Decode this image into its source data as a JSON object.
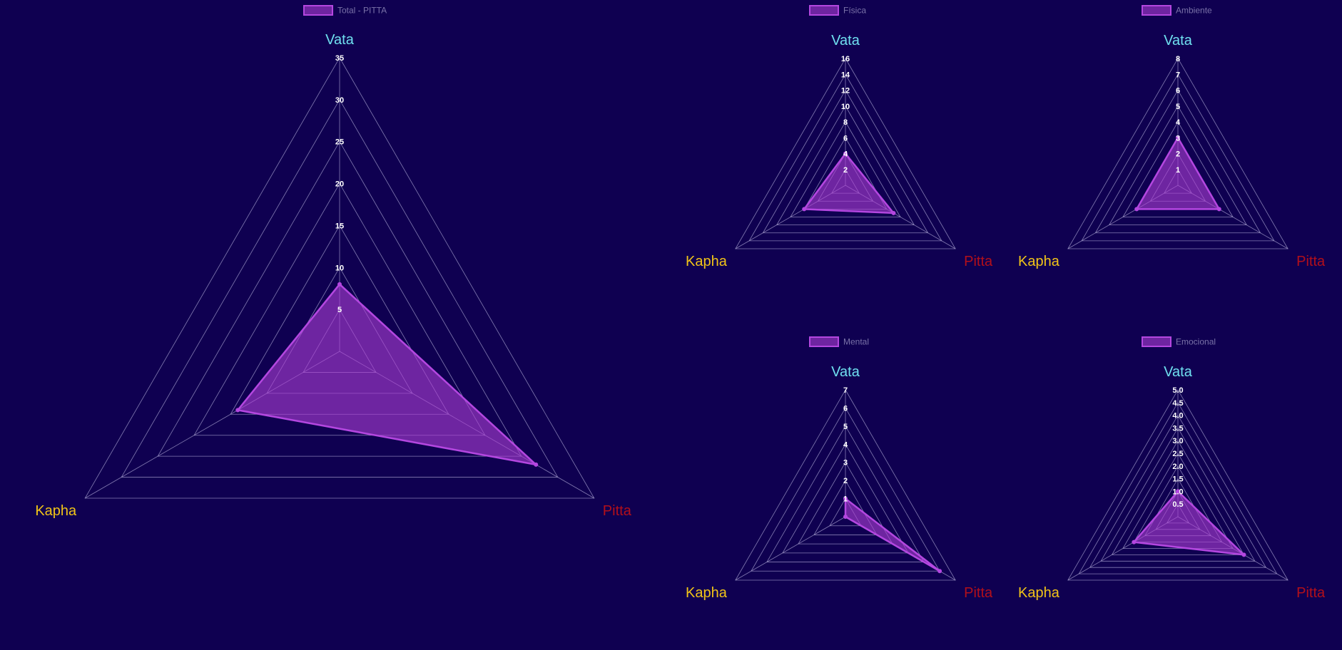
{
  "colors": {
    "background": "#0f0051",
    "grid": "#9a93c4",
    "fill": "rgba(170,60,210,0.62)",
    "stroke": "#b447e0",
    "legend_text": "#7a72a8",
    "tick_text": "#ffffff",
    "vata": "#6fe0f0",
    "kapha": "#f2c418",
    "pitta": "#b20f1a"
  },
  "chart_data": [
    {
      "type": "radar",
      "legend": "Total - PITTA",
      "axes": [
        "Vata",
        "Pitta",
        "Kapha"
      ],
      "values": [
        8,
        27,
        14
      ],
      "r_range": [
        0,
        35
      ],
      "ticks": [
        "5",
        "10",
        "15",
        "20",
        "25",
        "30",
        "35"
      ],
      "grid": true,
      "legend_position": "top"
    },
    {
      "type": "radar",
      "legend": "Física",
      "axes": [
        "Vata",
        "Pitta",
        "Kapha"
      ],
      "values": [
        4,
        7,
        6
      ],
      "r_range": [
        0,
        16
      ],
      "ticks": [
        "2",
        "4",
        "6",
        "8",
        "10",
        "12",
        "14",
        "16"
      ],
      "grid": true,
      "legend_position": "top"
    },
    {
      "type": "radar",
      "legend": "Ambiente",
      "axes": [
        "Vata",
        "Pitta",
        "Kapha"
      ],
      "values": [
        3,
        3,
        3
      ],
      "r_range": [
        0,
        8
      ],
      "ticks": [
        "1",
        "2",
        "3",
        "4",
        "5",
        "6",
        "7",
        "8"
      ],
      "grid": true,
      "legend_position": "top"
    },
    {
      "type": "radar",
      "legend": "Mental",
      "axes": [
        "Vata",
        "Pitta",
        "Kapha"
      ],
      "values": [
        1,
        6,
        0
      ],
      "r_range": [
        0,
        7
      ],
      "ticks": [
        "1",
        "2",
        "3",
        "4",
        "5",
        "6",
        "7"
      ],
      "grid": true,
      "legend_position": "top"
    },
    {
      "type": "radar",
      "legend": "Emocional",
      "axes": [
        "Vata",
        "Pitta",
        "Kapha"
      ],
      "values": [
        1,
        3,
        2
      ],
      "r_range": [
        0,
        5
      ],
      "ticks": [
        "0.5",
        "1.0",
        "1.5",
        "2.0",
        "2.5",
        "3.0",
        "3.5",
        "4.0",
        "4.5",
        "5.0"
      ],
      "grid": true,
      "legend_position": "top"
    }
  ]
}
